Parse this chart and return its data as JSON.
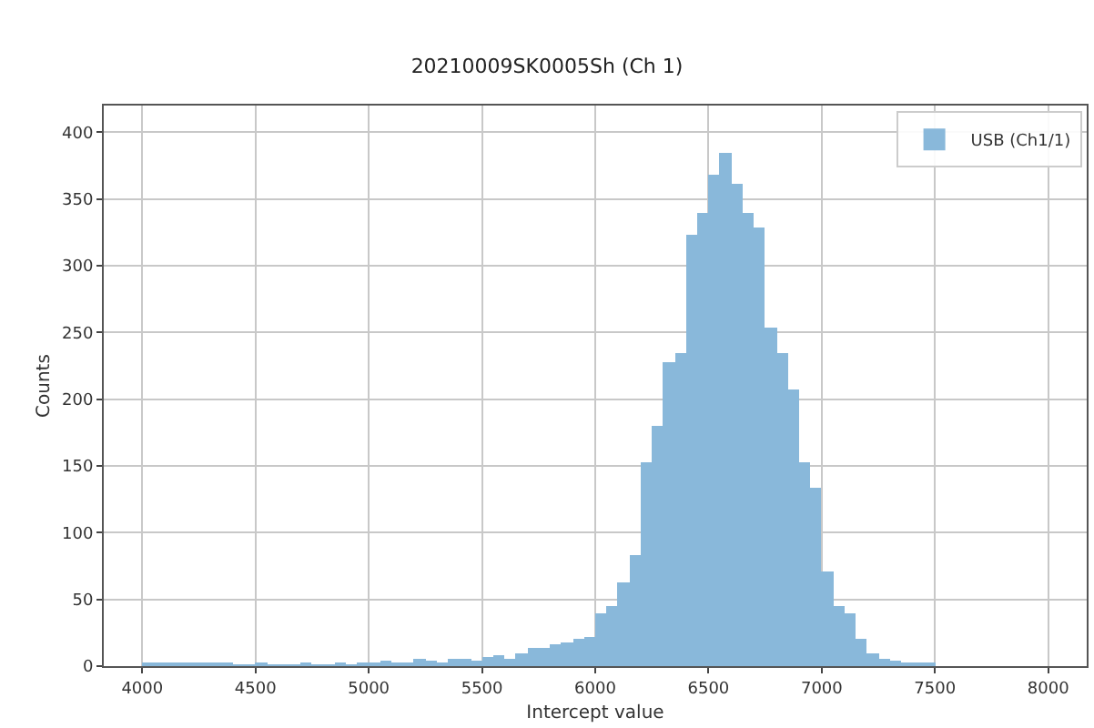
{
  "chart_data": {
    "type": "histogram",
    "title": "20210009SK0005Sh (Ch 1)",
    "xlabel": "Intercept value",
    "ylabel": "Counts",
    "bins": [
      4000,
      4050,
      4100,
      4150,
      4200,
      4250,
      4300,
      4350,
      4400,
      4450,
      4500,
      4550,
      4600,
      4650,
      4700,
      4750,
      4800,
      4850,
      4900,
      4950,
      5000,
      5050,
      5100,
      5150,
      5200,
      5250,
      5300,
      5350,
      5400,
      5450,
      5500,
      5550,
      5600,
      5650,
      5700,
      5750,
      5800,
      5850,
      5900,
      5950,
      6000,
      6050,
      6100,
      6150,
      6200,
      6250,
      6300,
      6350,
      6400,
      6450,
      6500,
      6550,
      6600,
      6650,
      6700,
      6750,
      6800,
      6850,
      6900,
      6950,
      7000,
      7050,
      7100,
      7150,
      7200,
      7250,
      7300,
      7350,
      7400,
      7450,
      7500
    ],
    "series": [
      {
        "name": "USB (Ch1/1)",
        "color": "#89b8da",
        "values": [
          2,
          3,
          2,
          2,
          2,
          3,
          2,
          2,
          1,
          1,
          2,
          1,
          1,
          1,
          2,
          1,
          1,
          2,
          1,
          3,
          3,
          4,
          3,
          3,
          5,
          4,
          3,
          6,
          5,
          4,
          7,
          8,
          6,
          10,
          13,
          14,
          16,
          18,
          20,
          22,
          39,
          45,
          63,
          83,
          153,
          180,
          228,
          235,
          323,
          340,
          368,
          385,
          361,
          340,
          329,
          254,
          235,
          207,
          153,
          133,
          71,
          45,
          39,
          21,
          9,
          6,
          4,
          3,
          2,
          2
        ]
      }
    ],
    "xlim": [
      3830,
      8170
    ],
    "ylim": [
      0,
      420
    ],
    "xticks": [
      4000,
      4500,
      5000,
      5500,
      6000,
      6500,
      7000,
      7500,
      8000
    ],
    "yticks": [
      0,
      50,
      100,
      150,
      200,
      250,
      300,
      350,
      400
    ],
    "grid": true,
    "legend": "top right"
  }
}
